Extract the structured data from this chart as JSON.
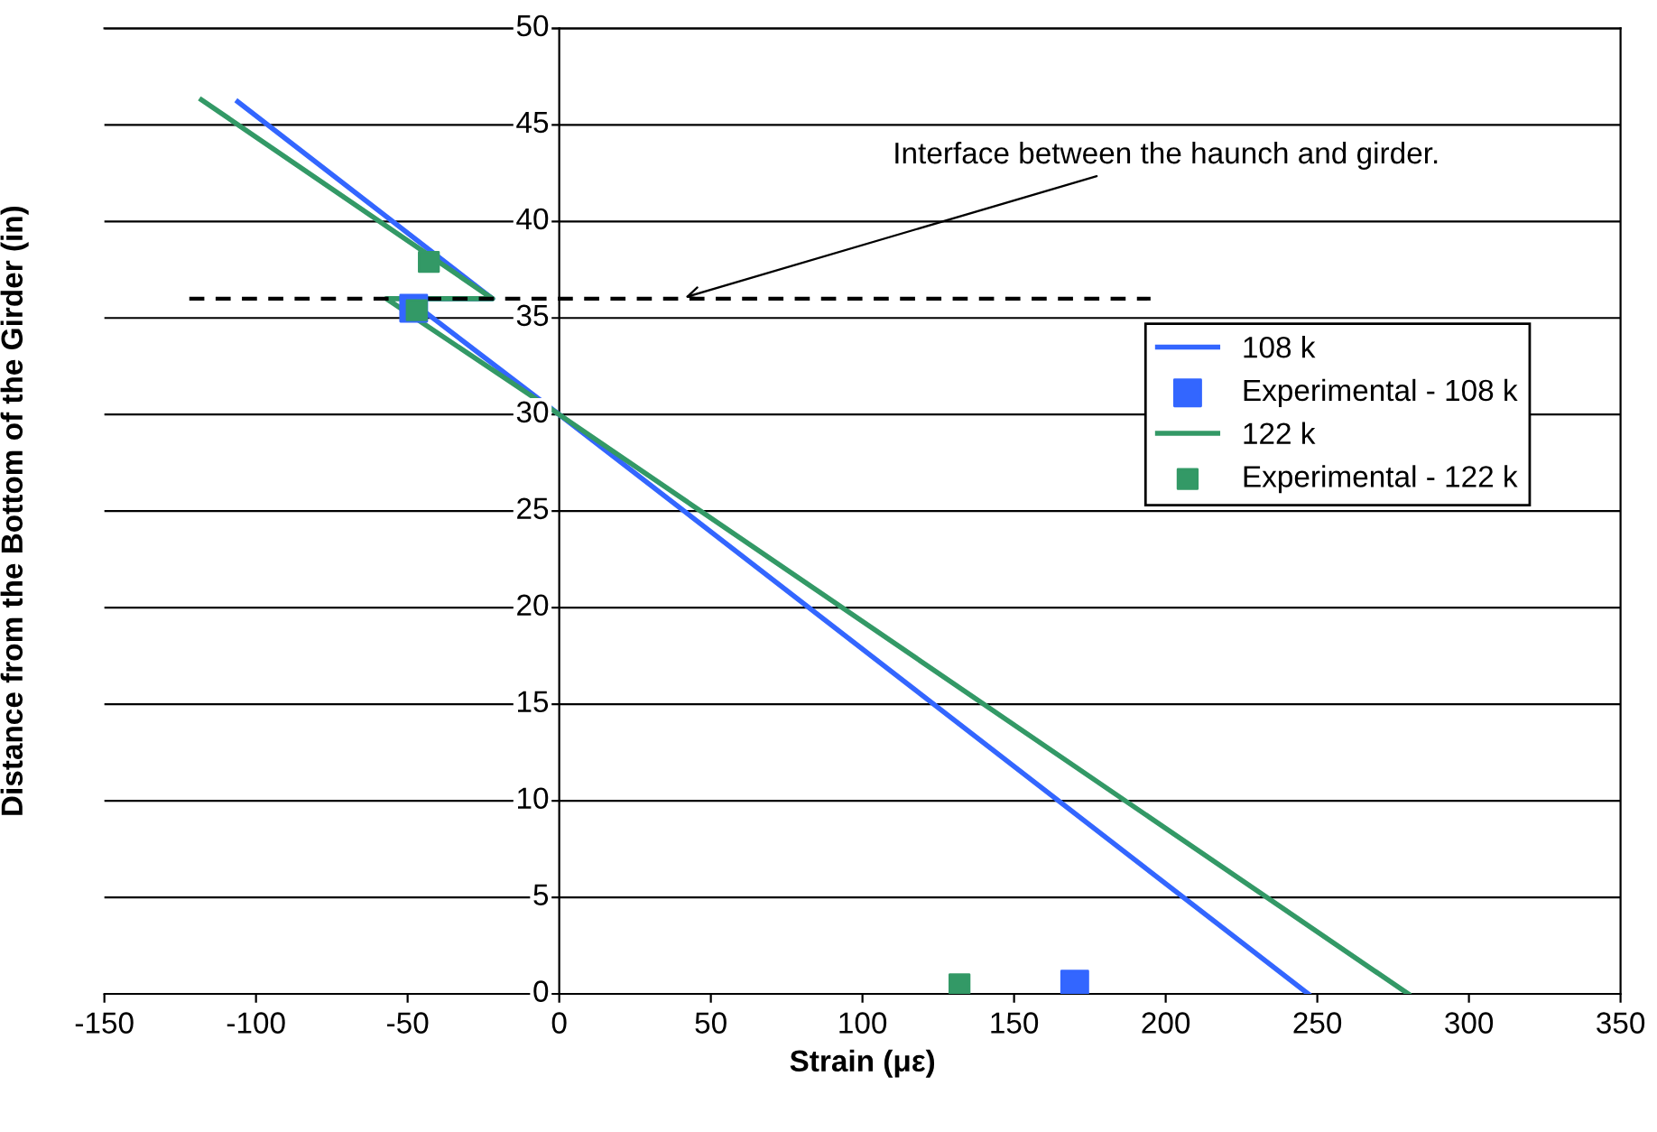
{
  "chart_data": {
    "type": "line",
    "xlabel": "Strain (με)",
    "ylabel": "Distance from the Bottom of the Girder (in)",
    "xlim": [
      -150,
      350
    ],
    "xticks": [
      -150,
      -100,
      -50,
      0,
      50,
      100,
      150,
      200,
      250,
      300,
      350
    ],
    "ylim": [
      0,
      50
    ],
    "yticks": [
      0,
      5,
      10,
      15,
      20,
      25,
      30,
      35,
      40,
      45,
      50
    ],
    "grid": "y",
    "legend": "right",
    "annotations": [
      {
        "text": "Interface between the haunch and girder.",
        "x": 40,
        "y": 36
      }
    ],
    "series": [
      {
        "name": "108 k",
        "color": "#3366ff",
        "x": [
          -106,
          -22,
          -50,
          0,
          247
        ],
        "values": [
          46.2,
          36,
          36,
          30,
          0
        ]
      },
      {
        "name": "Experimental - 108 k",
        "type": "scatter",
        "marker": "square",
        "color": "#3366ff",
        "x": [
          -48,
          170
        ],
        "values": [
          35.5,
          0.5
        ]
      },
      {
        "name": "122 k",
        "color": "#339966",
        "x": [
          -118,
          -22,
          -57,
          0,
          280
        ],
        "values": [
          46.3,
          36,
          36,
          30,
          0
        ]
      },
      {
        "name": "Experimental - 122 k",
        "type": "scatter",
        "marker": "square",
        "color": "#339966",
        "x": [
          -43,
          -47,
          132
        ],
        "values": [
          37.9,
          35.4,
          0.5
        ]
      },
      {
        "line_style": "dashed",
        "color": "#000000",
        "x": [
          -122,
          195
        ],
        "values": [
          36,
          36
        ]
      }
    ]
  }
}
